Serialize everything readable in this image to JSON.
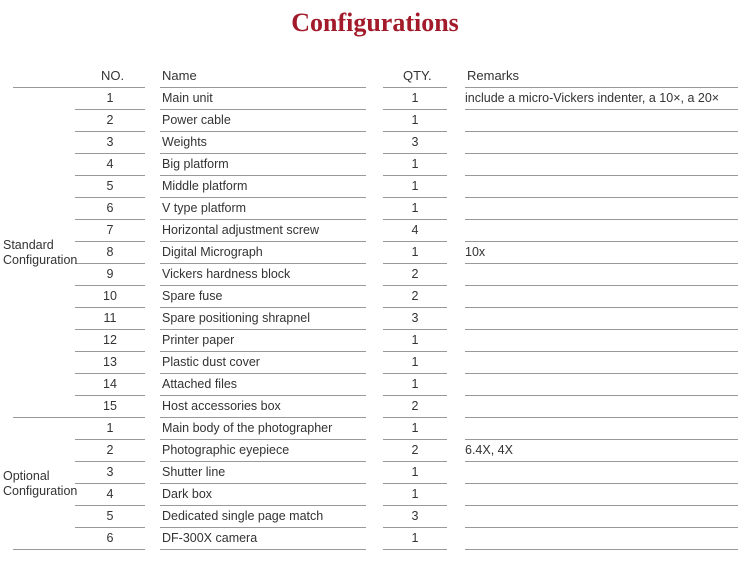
{
  "title": "Configurations",
  "headers": {
    "no": "NO.",
    "name": "Name",
    "qty": "QTY.",
    "remarks": "Remarks"
  },
  "groups": [
    {
      "label_line1": "Standard",
      "label_line2": "Configuration",
      "items": [
        {
          "no": "1",
          "name": "Main unit",
          "qty": "1",
          "remarks": "include a micro-Vickers indenter, a 10×, a 20×"
        },
        {
          "no": "2",
          "name": "Power cable",
          "qty": "1",
          "remarks": ""
        },
        {
          "no": "3",
          "name": "Weights",
          "qty": "3",
          "remarks": ""
        },
        {
          "no": "4",
          "name": "Big platform",
          "qty": "1",
          "remarks": ""
        },
        {
          "no": "5",
          "name": "Middle platform",
          "qty": "1",
          "remarks": ""
        },
        {
          "no": "6",
          "name": "V type platform",
          "qty": "1",
          "remarks": ""
        },
        {
          "no": "7",
          "name": "Horizontal adjustment screw",
          "qty": "4",
          "remarks": ""
        },
        {
          "no": "8",
          "name": "Digital Micrograph",
          "qty": "1",
          "remarks": "10x"
        },
        {
          "no": "9",
          "name": "Vickers hardness block",
          "qty": "2",
          "remarks": ""
        },
        {
          "no": "10",
          "name": "Spare fuse",
          "qty": "2",
          "remarks": ""
        },
        {
          "no": "11",
          "name": "Spare positioning shrapnel",
          "qty": "3",
          "remarks": ""
        },
        {
          "no": "12",
          "name": "Printer paper",
          "qty": "1",
          "remarks": ""
        },
        {
          "no": "13",
          "name": "Plastic dust cover",
          "qty": "1",
          "remarks": ""
        },
        {
          "no": "14",
          "name": "Attached files",
          "qty": "1",
          "remarks": ""
        },
        {
          "no": "15",
          "name": "Host accessories box",
          "qty": "2",
          "remarks": ""
        }
      ]
    },
    {
      "label_line1": "Optional",
      "label_line2": "Configuration",
      "items": [
        {
          "no": "1",
          "name": "Main body of the photographer",
          "qty": "1",
          "remarks": ""
        },
        {
          "no": "2",
          "name": "Photographic eyepiece",
          "qty": "2",
          "remarks": "6.4X, 4X"
        },
        {
          "no": "3",
          "name": "Shutter line",
          "qty": "1",
          "remarks": ""
        },
        {
          "no": "4",
          "name": "Dark box",
          "qty": "1",
          "remarks": ""
        },
        {
          "no": "5",
          "name": "Dedicated single page match",
          "qty": "3",
          "remarks": ""
        },
        {
          "no": "6",
          "name": "DF-300X camera",
          "qty": "1",
          "remarks": ""
        }
      ]
    }
  ]
}
